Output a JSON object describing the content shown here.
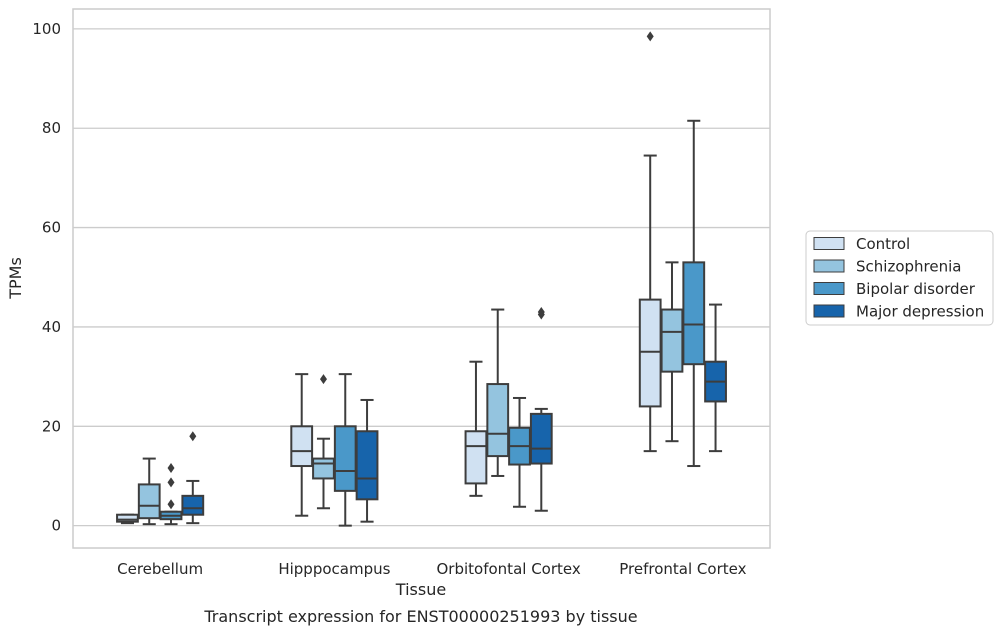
{
  "chart_data": {
    "type": "box",
    "title": "",
    "caption": "Transcript expression for ENST00000251993 by tissue",
    "xlabel": "Tissue",
    "ylabel": "TPMs",
    "ylim": [
      -4.5,
      104
    ],
    "yticks": [
      0,
      20,
      40,
      60,
      80,
      100
    ],
    "grid": "horizontal",
    "legend_position": "right",
    "categories": [
      "Cerebellum",
      "Hipppocampus",
      "Orbitofontal Cortex",
      "Prefrontal Cortex"
    ],
    "series": [
      {
        "name": "Control",
        "color": "#d0e1f2",
        "boxes": [
          {
            "whislo": 0.5,
            "q1": 0.8,
            "med": 1.2,
            "q3": 2.2,
            "whishi": 2.2,
            "fliers": []
          },
          {
            "whislo": 2,
            "q1": 12,
            "med": 15,
            "q3": 20,
            "whishi": 30.5,
            "fliers": []
          },
          {
            "whislo": 6,
            "q1": 8.5,
            "med": 16,
            "q3": 19,
            "whishi": 33,
            "fliers": []
          },
          {
            "whislo": 15,
            "q1": 24,
            "med": 35,
            "q3": 45.5,
            "whishi": 74.5,
            "fliers": [
              98.5
            ]
          }
        ]
      },
      {
        "name": "Schizophrenia",
        "color": "#94c4df",
        "boxes": [
          {
            "whislo": 0.3,
            "q1": 1.5,
            "med": 4,
            "q3": 8.3,
            "whishi": 13.5,
            "fliers": []
          },
          {
            "whislo": 3.5,
            "q1": 9.5,
            "med": 12.5,
            "q3": 13.5,
            "whishi": 17.5,
            "fliers": [
              29.5
            ]
          },
          {
            "whislo": 10,
            "q1": 14,
            "med": 18.5,
            "q3": 28.5,
            "whishi": 43.5,
            "fliers": []
          },
          {
            "whislo": 17,
            "q1": 31,
            "med": 39,
            "q3": 43.5,
            "whishi": 53,
            "fliers": []
          }
        ]
      },
      {
        "name": "Bipolar disorder",
        "color": "#4a98c9",
        "boxes": [
          {
            "whislo": 0.3,
            "q1": 1.3,
            "med": 2,
            "q3": 2.8,
            "whishi": 2.8,
            "fliers": [
              4.3,
              8.7,
              11.6
            ]
          },
          {
            "whislo": 0,
            "q1": 7,
            "med": 11,
            "q3": 20,
            "whishi": 30.5,
            "fliers": []
          },
          {
            "whislo": 3.8,
            "q1": 12.3,
            "med": 16,
            "q3": 19.7,
            "whishi": 25.7,
            "fliers": []
          },
          {
            "whislo": 12,
            "q1": 32.5,
            "med": 40.5,
            "q3": 53,
            "whishi": 81.5,
            "fliers": []
          }
        ]
      },
      {
        "name": "Major depression",
        "color": "#1764ab",
        "boxes": [
          {
            "whislo": 0.5,
            "q1": 2.2,
            "med": 3.5,
            "q3": 6,
            "whishi": 9,
            "fliers": [
              18
            ]
          },
          {
            "whislo": 0.8,
            "q1": 5.3,
            "med": 9.5,
            "q3": 19,
            "whishi": 25.3,
            "fliers": []
          },
          {
            "whislo": 3,
            "q1": 12.5,
            "med": 15.5,
            "q3": 22.5,
            "whishi": 23.5,
            "fliers": [
              42.5,
              43
            ]
          },
          {
            "whislo": 15,
            "q1": 25,
            "med": 29,
            "q3": 33,
            "whishi": 44.5,
            "fliers": []
          }
        ]
      }
    ]
  }
}
